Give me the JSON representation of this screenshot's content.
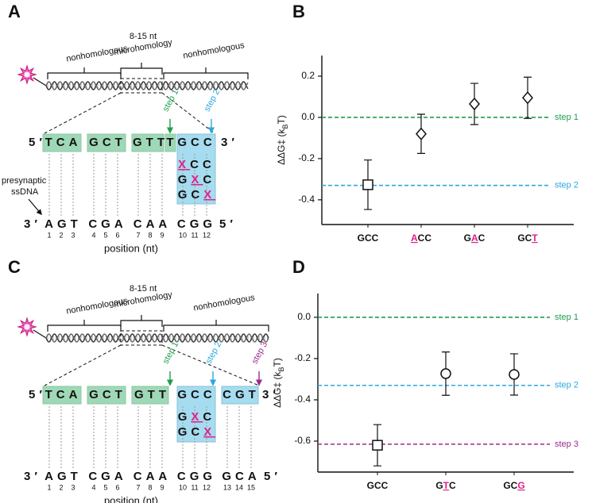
{
  "panel_labels": [
    "A",
    "B",
    "C",
    "D"
  ],
  "diagram_a": {
    "regions": [
      "nonhomologous",
      "8-15 nt",
      "microhomology",
      "nonhomologous"
    ],
    "five": "5′",
    "three": "3′",
    "top_groups": [
      "TCA",
      "GCT",
      "GTT",
      "T",
      "GCC"
    ],
    "steps": [
      "step 1",
      "step 2"
    ],
    "mutants": [
      "XCC",
      "GXC",
      "GCX"
    ],
    "mutant_highlight": [
      0,
      1,
      2
    ],
    "strand_label": [
      "presynaptic",
      "ssDNA"
    ],
    "bottom_three": "3′",
    "bottom_five": "5′",
    "bottom_groups": [
      "AGT",
      "CGA",
      "CAA",
      "CGG"
    ],
    "positions": [
      1,
      2,
      3,
      4,
      5,
      6,
      7,
      8,
      9,
      10,
      11,
      12
    ],
    "xlabel": "position (nt)"
  },
  "diagram_c": {
    "regions": [
      "nonhomologous",
      "8-15 nt",
      "microhomology",
      "nonhomologous"
    ],
    "five": "5′",
    "three": "3′",
    "top_groups": [
      "TCA",
      "GCT",
      "GTT",
      "GCC",
      "CGT"
    ],
    "steps": [
      "step 1",
      "step 2",
      "step 3"
    ],
    "mutants": [
      "GXC",
      "GCX"
    ],
    "mutant_highlight": [
      1,
      2
    ],
    "bottom_three": "3′",
    "bottom_five": "5′",
    "bottom_groups": [
      "AGT",
      "CGA",
      "CAA",
      "CGG",
      "GCA"
    ],
    "positions": [
      1,
      2,
      3,
      4,
      5,
      6,
      7,
      8,
      9,
      10,
      11,
      12,
      13,
      14,
      15
    ],
    "xlabel": "position (nt)"
  },
  "chart_data": [
    {
      "type": "scatter",
      "categories": [
        "GCC",
        "ACC",
        "GAC",
        "GCT"
      ],
      "category_highlight": [
        null,
        0,
        1,
        2
      ],
      "values": [
        -0.327,
        -0.08,
        0.065,
        0.095
      ],
      "errors": [
        0.12,
        0.095,
        0.1,
        0.1
      ],
      "markers": [
        "square",
        "diamond",
        "diamond",
        "diamond"
      ],
      "ylim": [
        -0.52,
        0.3
      ],
      "yticks": [
        0.2,
        {
          "value": 0,
          "label": "0.0"
        },
        -0.2,
        -0.4
      ],
      "ylabel": {
        "main": "ΔΔG‡ (k",
        "sub": "B",
        "end": "T)"
      },
      "reference_lines": [
        {
          "value": 0,
          "label": "step 1",
          "color": "#1f9e4c"
        },
        {
          "value": -0.33,
          "label": "step 2",
          "color": "#29a8df"
        }
      ],
      "highlight_color": "#e0218a"
    },
    {
      "type": "scatter",
      "categories": [
        "GCC",
        "GTC",
        "GCG"
      ],
      "category_highlight": [
        null,
        1,
        2
      ],
      "values": [
        -0.62,
        -0.273,
        -0.277
      ],
      "errors": [
        0.1,
        0.105,
        0.1
      ],
      "markers": [
        "square",
        "circle",
        "circle"
      ],
      "ylim": [
        -0.75,
        0.115
      ],
      "yticks": [
        {
          "value": 0,
          "label": "0.0"
        },
        -0.2,
        -0.4,
        -0.6
      ],
      "ylabel": {
        "main": "ΔΔG‡ (k",
        "sub": "B",
        "end": "T)"
      },
      "reference_lines": [
        {
          "value": 0,
          "label": "step 1",
          "color": "#1f9e4c"
        },
        {
          "value": -0.33,
          "label": "step 2",
          "color": "#29a8df"
        },
        {
          "value": -0.615,
          "label": "step 3",
          "color": "#9b2b8f"
        }
      ],
      "highlight_color": "#e0218a"
    }
  ]
}
